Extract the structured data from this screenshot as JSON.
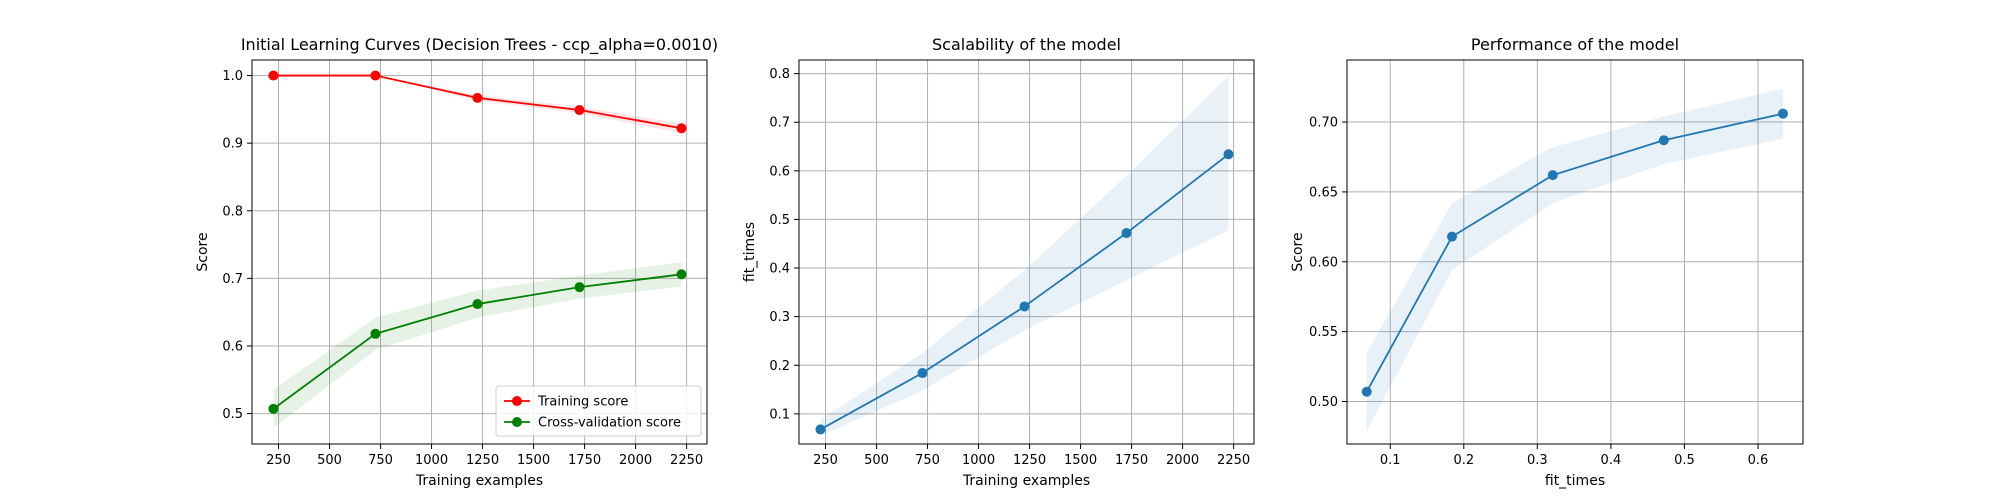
{
  "chart_data": [
    {
      "type": "line",
      "title": "Initial Learning Curves (Decision Trees - ccp_alpha=0.0010)",
      "xlabel": "Training examples",
      "ylabel": "Score",
      "xlim": [
        120,
        2350
      ],
      "ylim": [
        0.455,
        1.023
      ],
      "xticks": [
        250,
        500,
        750,
        1000,
        1250,
        1500,
        1750,
        2000,
        2250
      ],
      "yticks": [
        0.5,
        0.6,
        0.7,
        0.8,
        0.9,
        1.0
      ],
      "xtick_labels": [
        "250",
        "500",
        "750",
        "1000",
        "1250",
        "1500",
        "1750",
        "2000",
        "2250"
      ],
      "ytick_labels": [
        "0.5",
        "0.6",
        "0.7",
        "0.8",
        "0.9",
        "1.0"
      ],
      "grid": true,
      "legend_position": "lower-right",
      "x": [
        225,
        725,
        1225,
        1725,
        2225
      ],
      "series": [
        {
          "name": "Training score",
          "color": "#ff0000",
          "values": [
            1.0,
            1.0,
            0.967,
            0.949,
            0.922
          ],
          "band": [
            0.0,
            0.0,
            0.004,
            0.005,
            0.007
          ]
        },
        {
          "name": "Cross-validation score",
          "color": "#008000",
          "values": [
            0.507,
            0.618,
            0.662,
            0.687,
            0.706
          ],
          "band": [
            0.028,
            0.024,
            0.02,
            0.017,
            0.018
          ]
        }
      ]
    },
    {
      "type": "line",
      "title": "Scalability of the model",
      "xlabel": "Training examples",
      "ylabel": "fit_times",
      "xlim": [
        120,
        2350
      ],
      "ylim": [
        0.038,
        0.828
      ],
      "xticks": [
        250,
        500,
        750,
        1000,
        1250,
        1500,
        1750,
        2000,
        2250
      ],
      "yticks": [
        0.1,
        0.2,
        0.3,
        0.4,
        0.5,
        0.6,
        0.7,
        0.8
      ],
      "xtick_labels": [
        "250",
        "500",
        "750",
        "1000",
        "1250",
        "1500",
        "1750",
        "2000",
        "2250"
      ],
      "ytick_labels": [
        "0.1",
        "0.2",
        "0.3",
        "0.4",
        "0.5",
        "0.6",
        "0.7",
        "0.8"
      ],
      "grid": true,
      "x": [
        225,
        725,
        1225,
        1725,
        2225
      ],
      "series": [
        {
          "color": "#1f77b4",
          "values": [
            0.068,
            0.184,
            0.321,
            0.472,
            0.634
          ],
          "upper": [
            0.088,
            0.225,
            0.395,
            0.59,
            0.795
          ],
          "lower": [
            0.055,
            0.148,
            0.272,
            0.375,
            0.478
          ]
        }
      ]
    },
    {
      "type": "line",
      "title": "Performance of the model",
      "xlabel": "fit_times",
      "ylabel": "Score",
      "xlim": [
        0.0412,
        0.6612
      ],
      "ylim": [
        0.4696,
        0.7444
      ],
      "xticks": [
        0.1,
        0.2,
        0.3,
        0.4,
        0.5,
        0.6
      ],
      "yticks": [
        0.5,
        0.55,
        0.6,
        0.65,
        0.7
      ],
      "xtick_labels": [
        "0.1",
        "0.2",
        "0.3",
        "0.4",
        "0.5",
        "0.6"
      ],
      "ytick_labels": [
        "0.50",
        "0.55",
        "0.60",
        "0.65",
        "0.70"
      ],
      "grid": true,
      "x": [
        0.068,
        0.184,
        0.321,
        0.472,
        0.634
      ],
      "series": [
        {
          "color": "#1f77b4",
          "values": [
            0.507,
            0.618,
            0.662,
            0.687,
            0.706
          ],
          "band": [
            0.028,
            0.024,
            0.02,
            0.017,
            0.018
          ]
        }
      ]
    }
  ]
}
